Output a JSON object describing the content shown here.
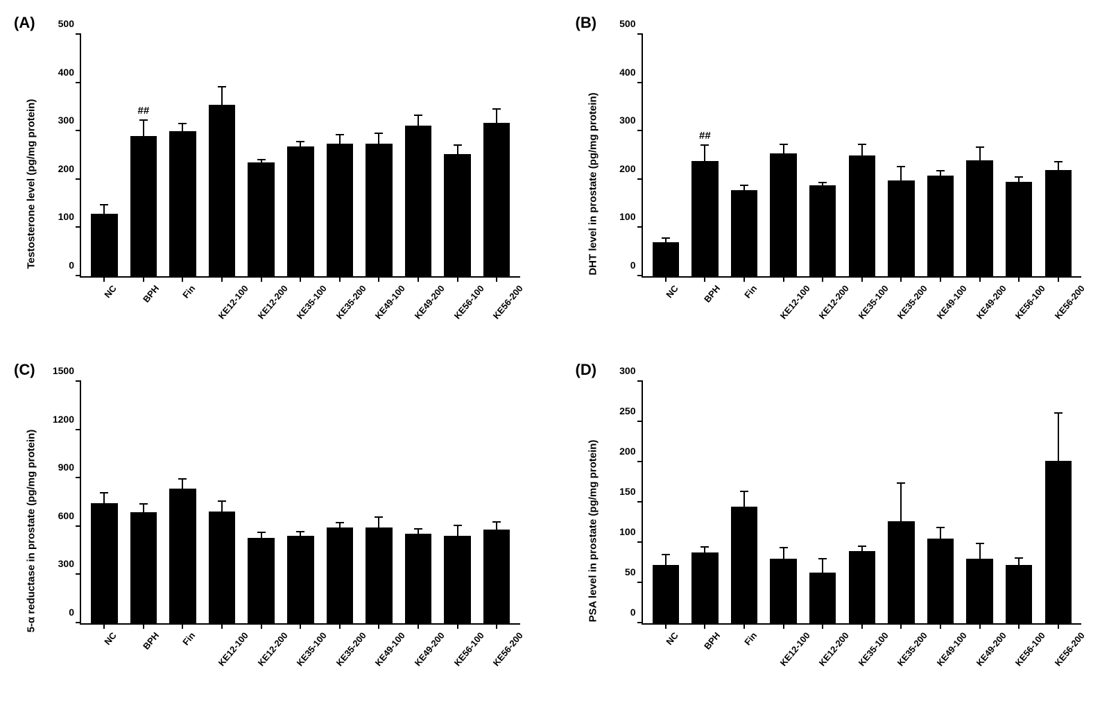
{
  "panels": [
    {
      "label": "(A)",
      "type": "bar",
      "ylabel": "Testosterone level (pg/mg protein)",
      "ylim": [
        0,
        500
      ],
      "ytick_step": 100,
      "bar_color": "#000000",
      "background_color": "#ffffff",
      "label_fontsize": 15,
      "tick_fontsize": 14,
      "bar_width": 0.68,
      "categories": [
        "NC",
        "BPH",
        "Fin",
        "KE12-100",
        "KE12-200",
        "KE35-100",
        "KE35-200",
        "KE49-100",
        "KE49-200",
        "KE56-100",
        "KE56-200"
      ],
      "values": [
        130,
        290,
        300,
        355,
        235,
        268,
        275,
        275,
        312,
        253,
        318
      ],
      "errors": [
        20,
        35,
        18,
        38,
        8,
        12,
        20,
        22,
        23,
        20,
        30
      ],
      "significance": {
        "BPH": "##"
      }
    },
    {
      "label": "(B)",
      "type": "bar",
      "ylabel": "DHT level in prostate (pg/mg protein)",
      "ylim": [
        0,
        500
      ],
      "ytick_step": 100,
      "bar_color": "#000000",
      "background_color": "#ffffff",
      "label_fontsize": 15,
      "tick_fontsize": 14,
      "bar_width": 0.68,
      "categories": [
        "NC",
        "BPH",
        "Fin",
        "KE12-100",
        "KE12-200",
        "KE35-100",
        "KE35-200",
        "KE49-100",
        "KE49-200",
        "KE56-100",
        "KE56-200"
      ],
      "values": [
        70,
        238,
        178,
        255,
        188,
        250,
        198,
        208,
        240,
        195,
        220
      ],
      "errors": [
        10,
        35,
        12,
        20,
        8,
        25,
        30,
        12,
        28,
        12,
        18
      ],
      "significance": {
        "BPH": "##"
      }
    },
    {
      "label": "(C)",
      "type": "bar",
      "ylabel": "5-α reductase in prostate (pg/mg protein)",
      "ylim": [
        0,
        1500
      ],
      "ytick_step": 300,
      "bar_color": "#000000",
      "background_color": "#ffffff",
      "label_fontsize": 15,
      "tick_fontsize": 14,
      "bar_width": 0.68,
      "categories": [
        "NC",
        "BPH",
        "Fin",
        "KE12-100",
        "KE12-200",
        "KE35-100",
        "KE35-200",
        "KE49-100",
        "KE49-200",
        "KE56-100",
        "KE56-200"
      ],
      "values": [
        745,
        690,
        835,
        695,
        530,
        545,
        595,
        595,
        555,
        545,
        580
      ],
      "errors": [
        70,
        55,
        65,
        70,
        40,
        30,
        35,
        70,
        35,
        65,
        55
      ],
      "significance": {}
    },
    {
      "label": "(D)",
      "type": "bar",
      "ylabel": "PSA level in prostate (pg/mg protein)",
      "ylim": [
        0,
        300
      ],
      "ytick_step": 50,
      "bar_color": "#000000",
      "background_color": "#ffffff",
      "label_fontsize": 15,
      "tick_fontsize": 14,
      "bar_width": 0.68,
      "categories": [
        "NC",
        "BPH",
        "Fin",
        "KE12-100",
        "KE12-200",
        "KE35-100",
        "KE35-200",
        "KE49-100",
        "KE49-200",
        "KE56-100",
        "KE56-200"
      ],
      "values": [
        72,
        88,
        145,
        80,
        63,
        90,
        127,
        105,
        80,
        72,
        202
      ],
      "errors": [
        14,
        8,
        20,
        15,
        18,
        7,
        48,
        15,
        20,
        10,
        60
      ],
      "significance": {}
    }
  ]
}
